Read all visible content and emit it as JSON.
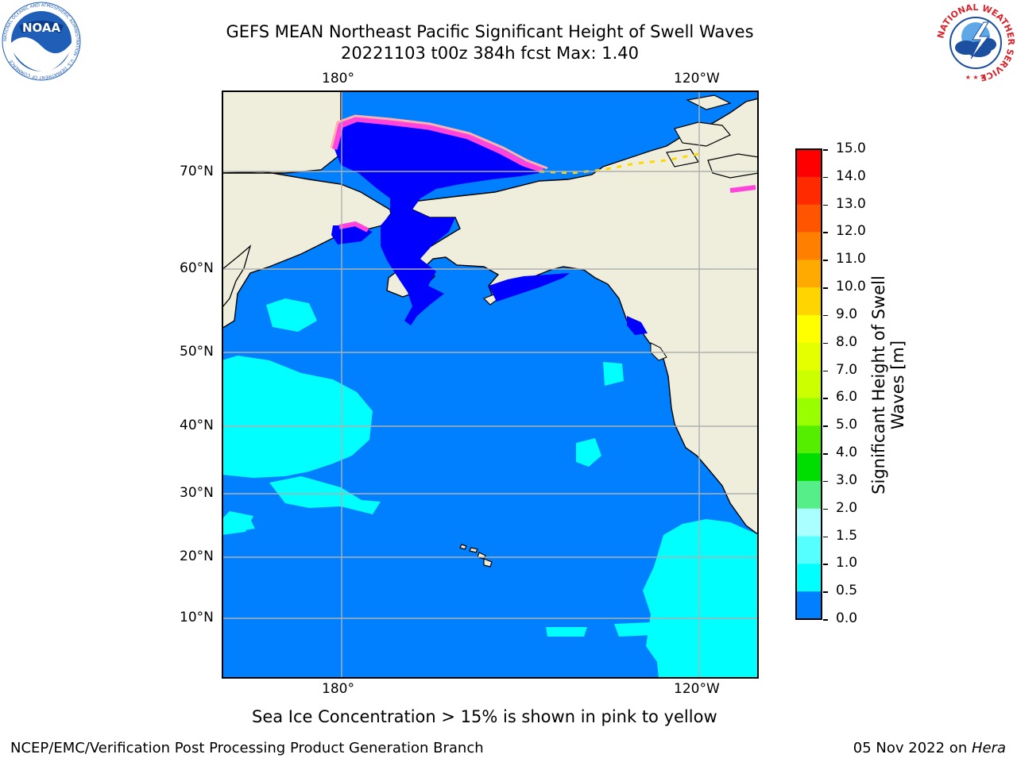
{
  "header": {
    "title_line1": "GEFS MEAN Northeast Pacific Significant Height of Swell Waves",
    "title_line2": "20221103 t00z 384h fcst   Max: 1.40",
    "left_logo": {
      "text": "NOAA",
      "ring_text": "NATIONAL OCEANIC AND ATMOSPHERIC ADMINISTRATION · U.S. DEPARTMENT OF COMMERCE",
      "colors": {
        "ring": "#ffffff",
        "field": "#1f5fb7",
        "bird": "#ffffff"
      }
    },
    "right_logo": {
      "ring_text": "NATIONAL WEATHER SERVICE",
      "colors": {
        "ring": "#d8232a",
        "field": "#1c4fa0"
      }
    }
  },
  "map": {
    "top_lon_labels": [
      "180°",
      "120°W"
    ],
    "bottom_lon_labels": [
      "180°",
      "120°W"
    ],
    "lat_labels": [
      "70°N",
      "60°N",
      "50°N",
      "40°N",
      "30°N",
      "20°N",
      "10°N"
    ],
    "colors": {
      "land": "#efeedd",
      "ocean_0_5_1_0": "#0080ff",
      "ocean_0_0_0_5": "#0000ff",
      "ocean_1_0_1_5": "#00ffff",
      "ice_low": "#ff44dd",
      "ice_mid": "#ffb0b0",
      "ice_high": "#ffd700",
      "grid": "#b0b0b0"
    }
  },
  "colorbar": {
    "label_line1": "Significant Height of Swell",
    "label_line2": "Waves [m]",
    "ticks": [
      "15.0",
      "14.0",
      "13.0",
      "12.0",
      "11.0",
      "10.0",
      "9.0",
      "8.0",
      "7.0",
      "6.0",
      "5.0",
      "4.0",
      "3.0",
      "2.0",
      "1.5",
      "1.0",
      "0.5",
      "0.0"
    ],
    "colors": [
      "#ff0000",
      "#ff2a00",
      "#ff5500",
      "#ff8000",
      "#ffaa00",
      "#ffd500",
      "#ffff00",
      "#e6ff00",
      "#ccff00",
      "#99ff00",
      "#55ee00",
      "#00dd00",
      "#55ee88",
      "#aaffff",
      "#55ffff",
      "#00ffff",
      "#0080ff",
      "#0000ff"
    ]
  },
  "note": "Sea Ice Concentration > 15% is shown in pink to yellow",
  "footer": {
    "left": "NCEP/EMC/Verification Post Processing Product Generation Branch",
    "right_prefix": "05 Nov 2022 on ",
    "right_italic": "Hera"
  }
}
